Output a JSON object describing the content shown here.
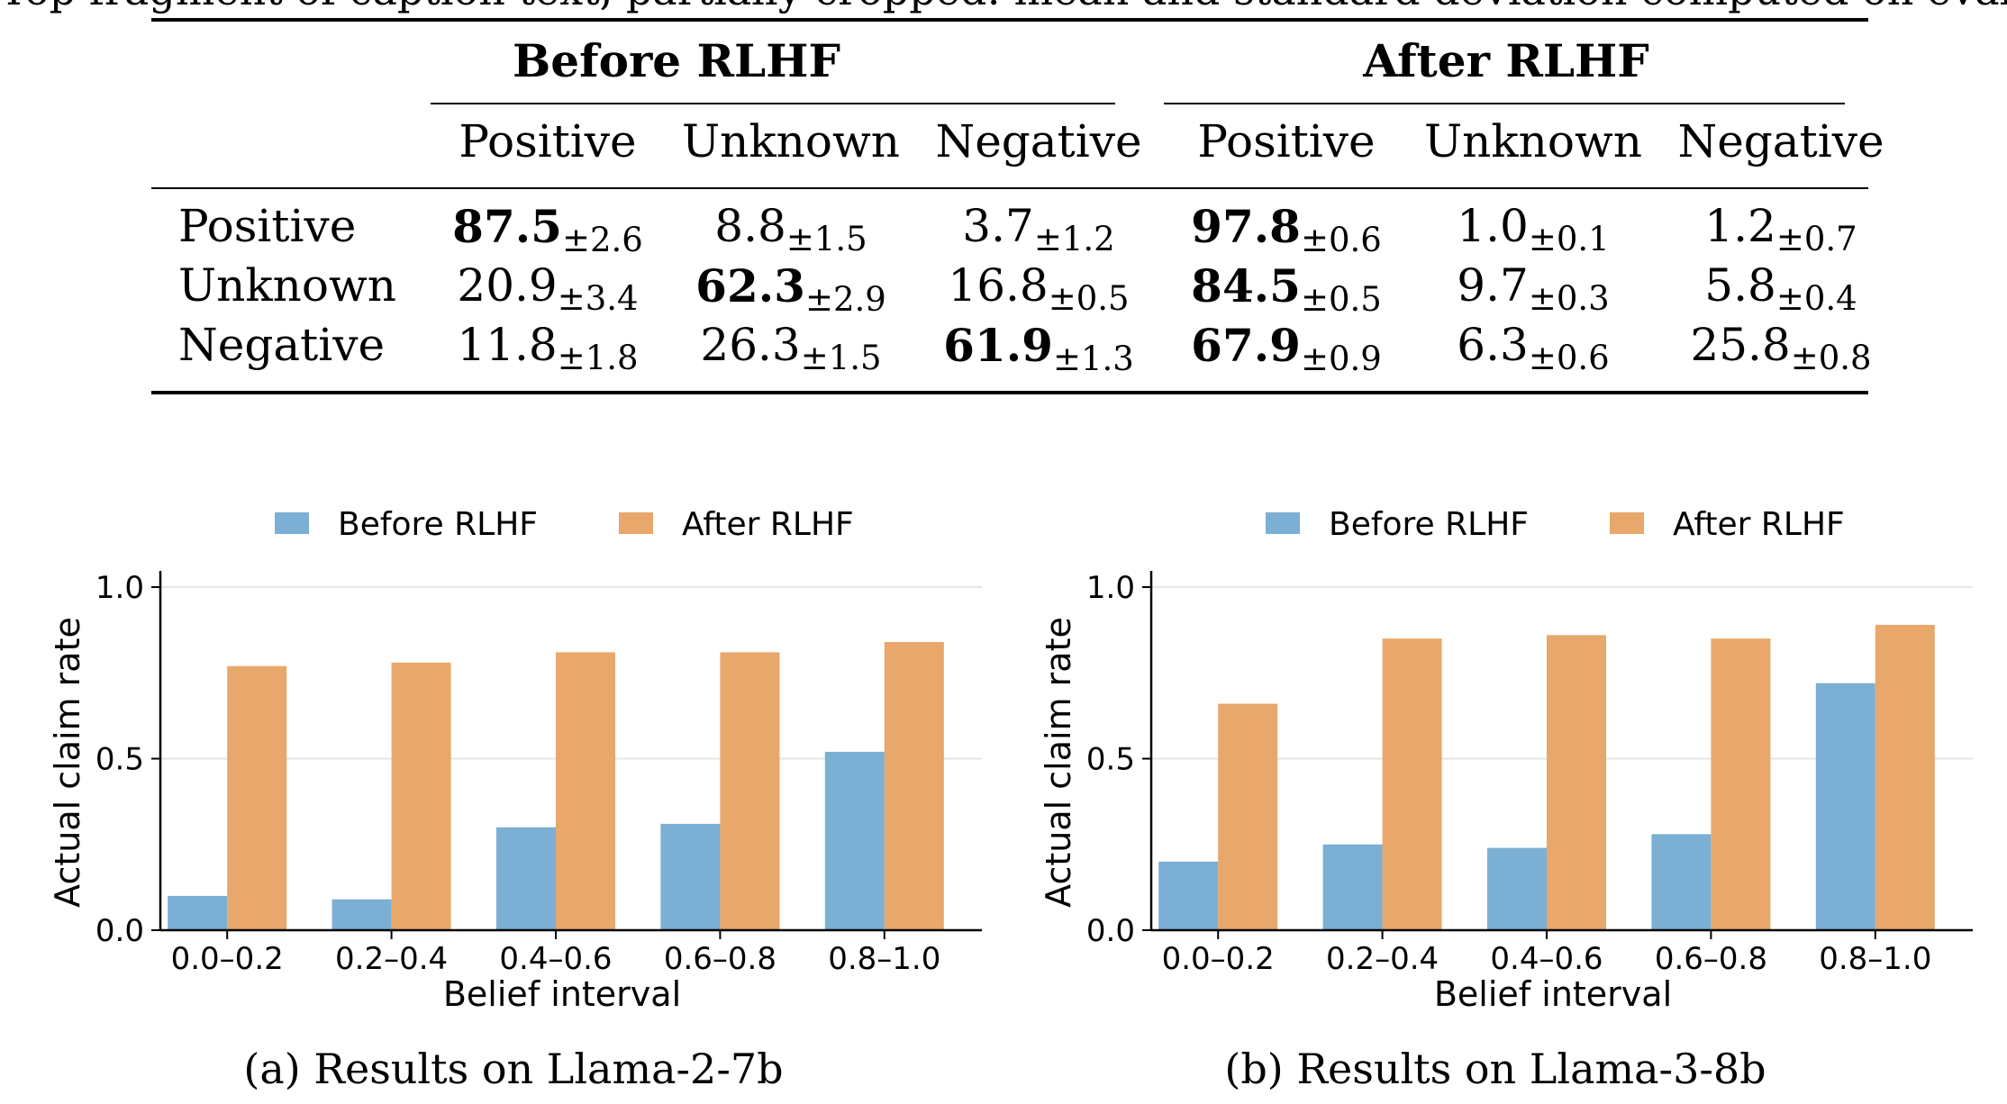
{
  "top_fragment": "Top fragment of caption text, partially cropped: mean and standard deviation computed on evaluation rounds.",
  "table": {
    "groups": [
      {
        "title": "Before RLHF",
        "columns": [
          "Positive",
          "Unknown",
          "Negative"
        ]
      },
      {
        "title": "After RLHF",
        "columns": [
          "Positive",
          "Unknown",
          "Negative"
        ]
      }
    ],
    "rows": [
      {
        "label": "Positive",
        "cells": [
          {
            "v": "87.5",
            "sd": "±2.6",
            "bold": true
          },
          {
            "v": "8.8",
            "sd": "±1.5",
            "bold": false
          },
          {
            "v": "3.7",
            "sd": "±1.2",
            "bold": false
          },
          {
            "v": "97.8",
            "sd": "±0.6",
            "bold": true
          },
          {
            "v": "1.0",
            "sd": "±0.1",
            "bold": false
          },
          {
            "v": "1.2",
            "sd": "±0.7",
            "bold": false
          }
        ]
      },
      {
        "label": "Unknown",
        "cells": [
          {
            "v": "20.9",
            "sd": "±3.4",
            "bold": false
          },
          {
            "v": "62.3",
            "sd": "±2.9",
            "bold": true
          },
          {
            "v": "16.8",
            "sd": "±0.5",
            "bold": false
          },
          {
            "v": "84.5",
            "sd": "±0.5",
            "bold": true
          },
          {
            "v": "9.7",
            "sd": "±0.3",
            "bold": false
          },
          {
            "v": "5.8",
            "sd": "±0.4",
            "bold": false
          }
        ]
      },
      {
        "label": "Negative",
        "cells": [
          {
            "v": "11.8",
            "sd": "±1.8",
            "bold": false
          },
          {
            "v": "26.3",
            "sd": "±1.5",
            "bold": false
          },
          {
            "v": "61.9",
            "sd": "±1.3",
            "bold": true
          },
          {
            "v": "67.9",
            "sd": "±0.9",
            "bold": true
          },
          {
            "v": "6.3",
            "sd": "±0.6",
            "bold": false
          },
          {
            "v": "25.8",
            "sd": "±0.8",
            "bold": false
          }
        ]
      }
    ]
  },
  "captions": {
    "a": "(a) Results on Llama-2-7b",
    "b": "(b) Results on Llama-3-8b"
  },
  "colors": {
    "before": "#7bafd4",
    "after": "#e8a76b",
    "grid": "#e6e6e6"
  },
  "chart_data": [
    {
      "type": "bar",
      "categories": [
        "0.0–0.2",
        "0.2–0.4",
        "0.4–0.6",
        "0.6–0.8",
        "0.8–1.0"
      ],
      "series": [
        {
          "name": "Before RLHF",
          "values": [
            0.1,
            0.09,
            0.3,
            0.31,
            0.52
          ]
        },
        {
          "name": "After RLHF",
          "values": [
            0.77,
            0.78,
            0.81,
            0.81,
            0.84
          ]
        }
      ],
      "xlabel": "Belief interval",
      "ylabel": "Actual claim rate",
      "ylim": [
        0,
        1.0
      ],
      "yticks": [
        "0.0",
        "0.5",
        "1.0"
      ],
      "legend": "top-center",
      "grid": "horizontal"
    },
    {
      "type": "bar",
      "categories": [
        "0.0–0.2",
        "0.2–0.4",
        "0.4–0.6",
        "0.6–0.8",
        "0.8–1.0"
      ],
      "series": [
        {
          "name": "Before RLHF",
          "values": [
            0.2,
            0.25,
            0.24,
            0.28,
            0.72
          ]
        },
        {
          "name": "After RLHF",
          "values": [
            0.66,
            0.85,
            0.86,
            0.85,
            0.89
          ]
        }
      ],
      "xlabel": "Belief interval",
      "ylabel": "Actual claim rate",
      "ylim": [
        0,
        1.0
      ],
      "yticks": [
        "0.0",
        "0.5",
        "1.0"
      ],
      "legend": "top-center",
      "grid": "horizontal"
    }
  ]
}
